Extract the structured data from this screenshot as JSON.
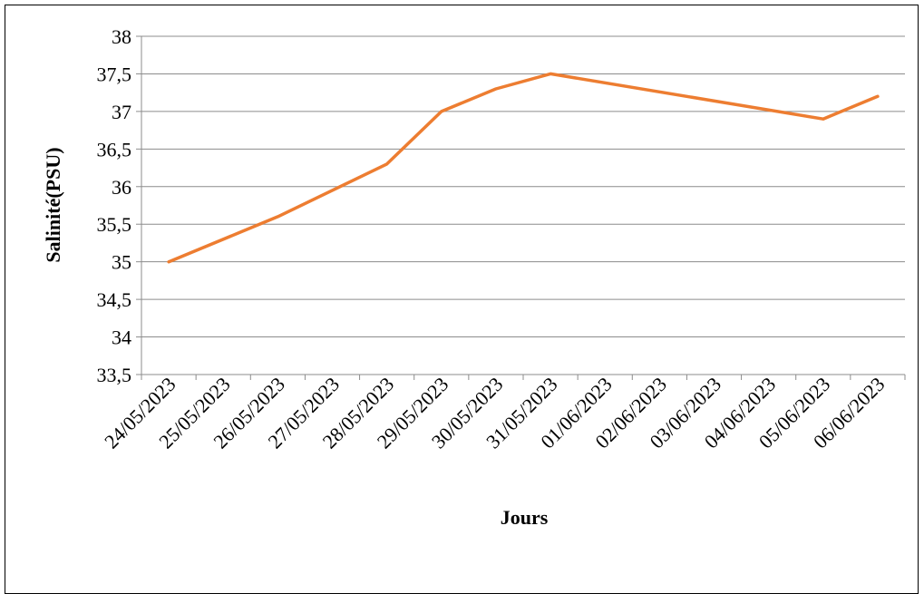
{
  "chart_data": {
    "type": "line",
    "title": "",
    "xlabel": "Jours",
    "ylabel": "Salinité(PSU)",
    "categories": [
      "24/05/2023",
      "25/05/2023",
      "26/05/2023",
      "27/05/2023",
      "28/05/2023",
      "29/05/2023",
      "30/05/2023",
      "31/05/2023",
      "01/06/2023",
      "02/06/2023",
      "03/06/2023",
      "04/06/2023",
      "05/06/2023",
      "06/06/2023"
    ],
    "yticks": [
      "33,5",
      "34",
      "34,5",
      "35",
      "35,5",
      "36",
      "36,5",
      "37",
      "37,5",
      "38"
    ],
    "ylim": [
      33.5,
      38
    ],
    "grid": true,
    "legend": "none",
    "series": [
      {
        "color": "#ED7D31",
        "points": [
          {
            "x": "24/05/2023",
            "y": 35.0
          },
          {
            "x": "26/05/2023",
            "y": 35.6
          },
          {
            "x": "28/05/2023",
            "y": 36.3
          },
          {
            "x": "29/05/2023",
            "y": 37.0
          },
          {
            "x": "30/05/2023",
            "y": 37.3
          },
          {
            "x": "31/05/2023",
            "y": 37.5
          },
          {
            "x": "05/06/2023",
            "y": 36.9
          },
          {
            "x": "06/06/2023",
            "y": 37.2
          }
        ]
      }
    ]
  }
}
